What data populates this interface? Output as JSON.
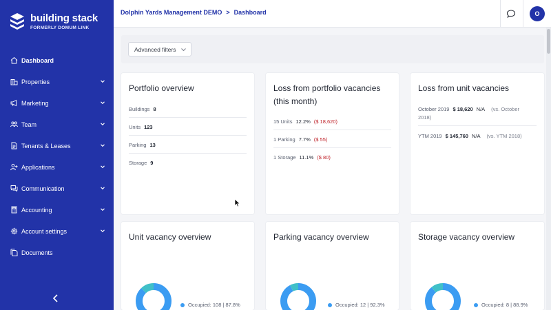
{
  "brand": {
    "name": "building stack",
    "subtitle": "FORMERLY DOMUM LINK"
  },
  "sidebar": {
    "items": [
      {
        "label": "Dashboard",
        "icon": "home-icon",
        "active": true,
        "expandable": false
      },
      {
        "label": "Properties",
        "icon": "building-icon",
        "active": false,
        "expandable": true
      },
      {
        "label": "Marketing",
        "icon": "megaphone-icon",
        "active": false,
        "expandable": true
      },
      {
        "label": "Team",
        "icon": "team-icon",
        "active": false,
        "expandable": true
      },
      {
        "label": "Tenants & Leases",
        "icon": "document-icon",
        "active": false,
        "expandable": true
      },
      {
        "label": "Applications",
        "icon": "user-plus-icon",
        "active": false,
        "expandable": true
      },
      {
        "label": "Communication",
        "icon": "messages-icon",
        "active": false,
        "expandable": true
      },
      {
        "label": "Accounting",
        "icon": "calculator-icon",
        "active": false,
        "expandable": true
      },
      {
        "label": "Account settings",
        "icon": "gear-icon",
        "active": false,
        "expandable": true
      },
      {
        "label": "Documents",
        "icon": "files-icon",
        "active": false,
        "expandable": false
      }
    ]
  },
  "header": {
    "breadcrumb": [
      "Dolphin Yards Management DEMO",
      "Dashboard"
    ],
    "separator": ">",
    "avatar_initial": "O"
  },
  "filters": {
    "label": "Advanced filters"
  },
  "portfolio": {
    "title": "Portfolio overview",
    "rows": [
      {
        "label": "Buildings",
        "value": "8"
      },
      {
        "label": "Units",
        "value": "123"
      },
      {
        "label": "Parking",
        "value": "13"
      },
      {
        "label": "Storage",
        "value": "9"
      }
    ]
  },
  "portfolio_loss": {
    "title_line1": "Loss from portfolio vacancies",
    "title_line2": "(this month)",
    "rows": [
      {
        "label": "15 Units",
        "pct": "12.2%",
        "amount": "($ 18,620)"
      },
      {
        "label": "1 Parking",
        "pct": "7.7%",
        "amount": "($ 55)"
      },
      {
        "label": "1 Storage",
        "pct": "11.1%",
        "amount": "($ 80)"
      }
    ]
  },
  "unit_loss": {
    "title": "Loss from unit vacancies",
    "rows": [
      {
        "label": "October 2019",
        "amount": "$ 18,620",
        "change": "N/A",
        "compare_line1": "(vs. October",
        "compare_line2": "2018)"
      },
      {
        "label": "YTM 2019",
        "amount": "$ 145,760",
        "change": "N/A",
        "compare_line1": "(vs. YTM 2018)",
        "compare_line2": ""
      }
    ]
  },
  "vacancy_cards": [
    {
      "title": "Unit vacancy overview",
      "legend": "Occupied: 108 | 87.8%",
      "occupied_fraction": 0.878
    },
    {
      "title": "Parking vacancy overview",
      "legend": "Occupied: 12 | 92.3%",
      "occupied_fraction": 0.923
    },
    {
      "title": "Storage vacancy overview",
      "legend": "Occupied: 8 | 88.9%",
      "occupied_fraction": 0.889
    }
  ],
  "colors": {
    "sidebar": "#2233a8",
    "occupied": "#3b9cf2",
    "vacant": "#40c0c8",
    "loss_red": "#c0262d"
  }
}
